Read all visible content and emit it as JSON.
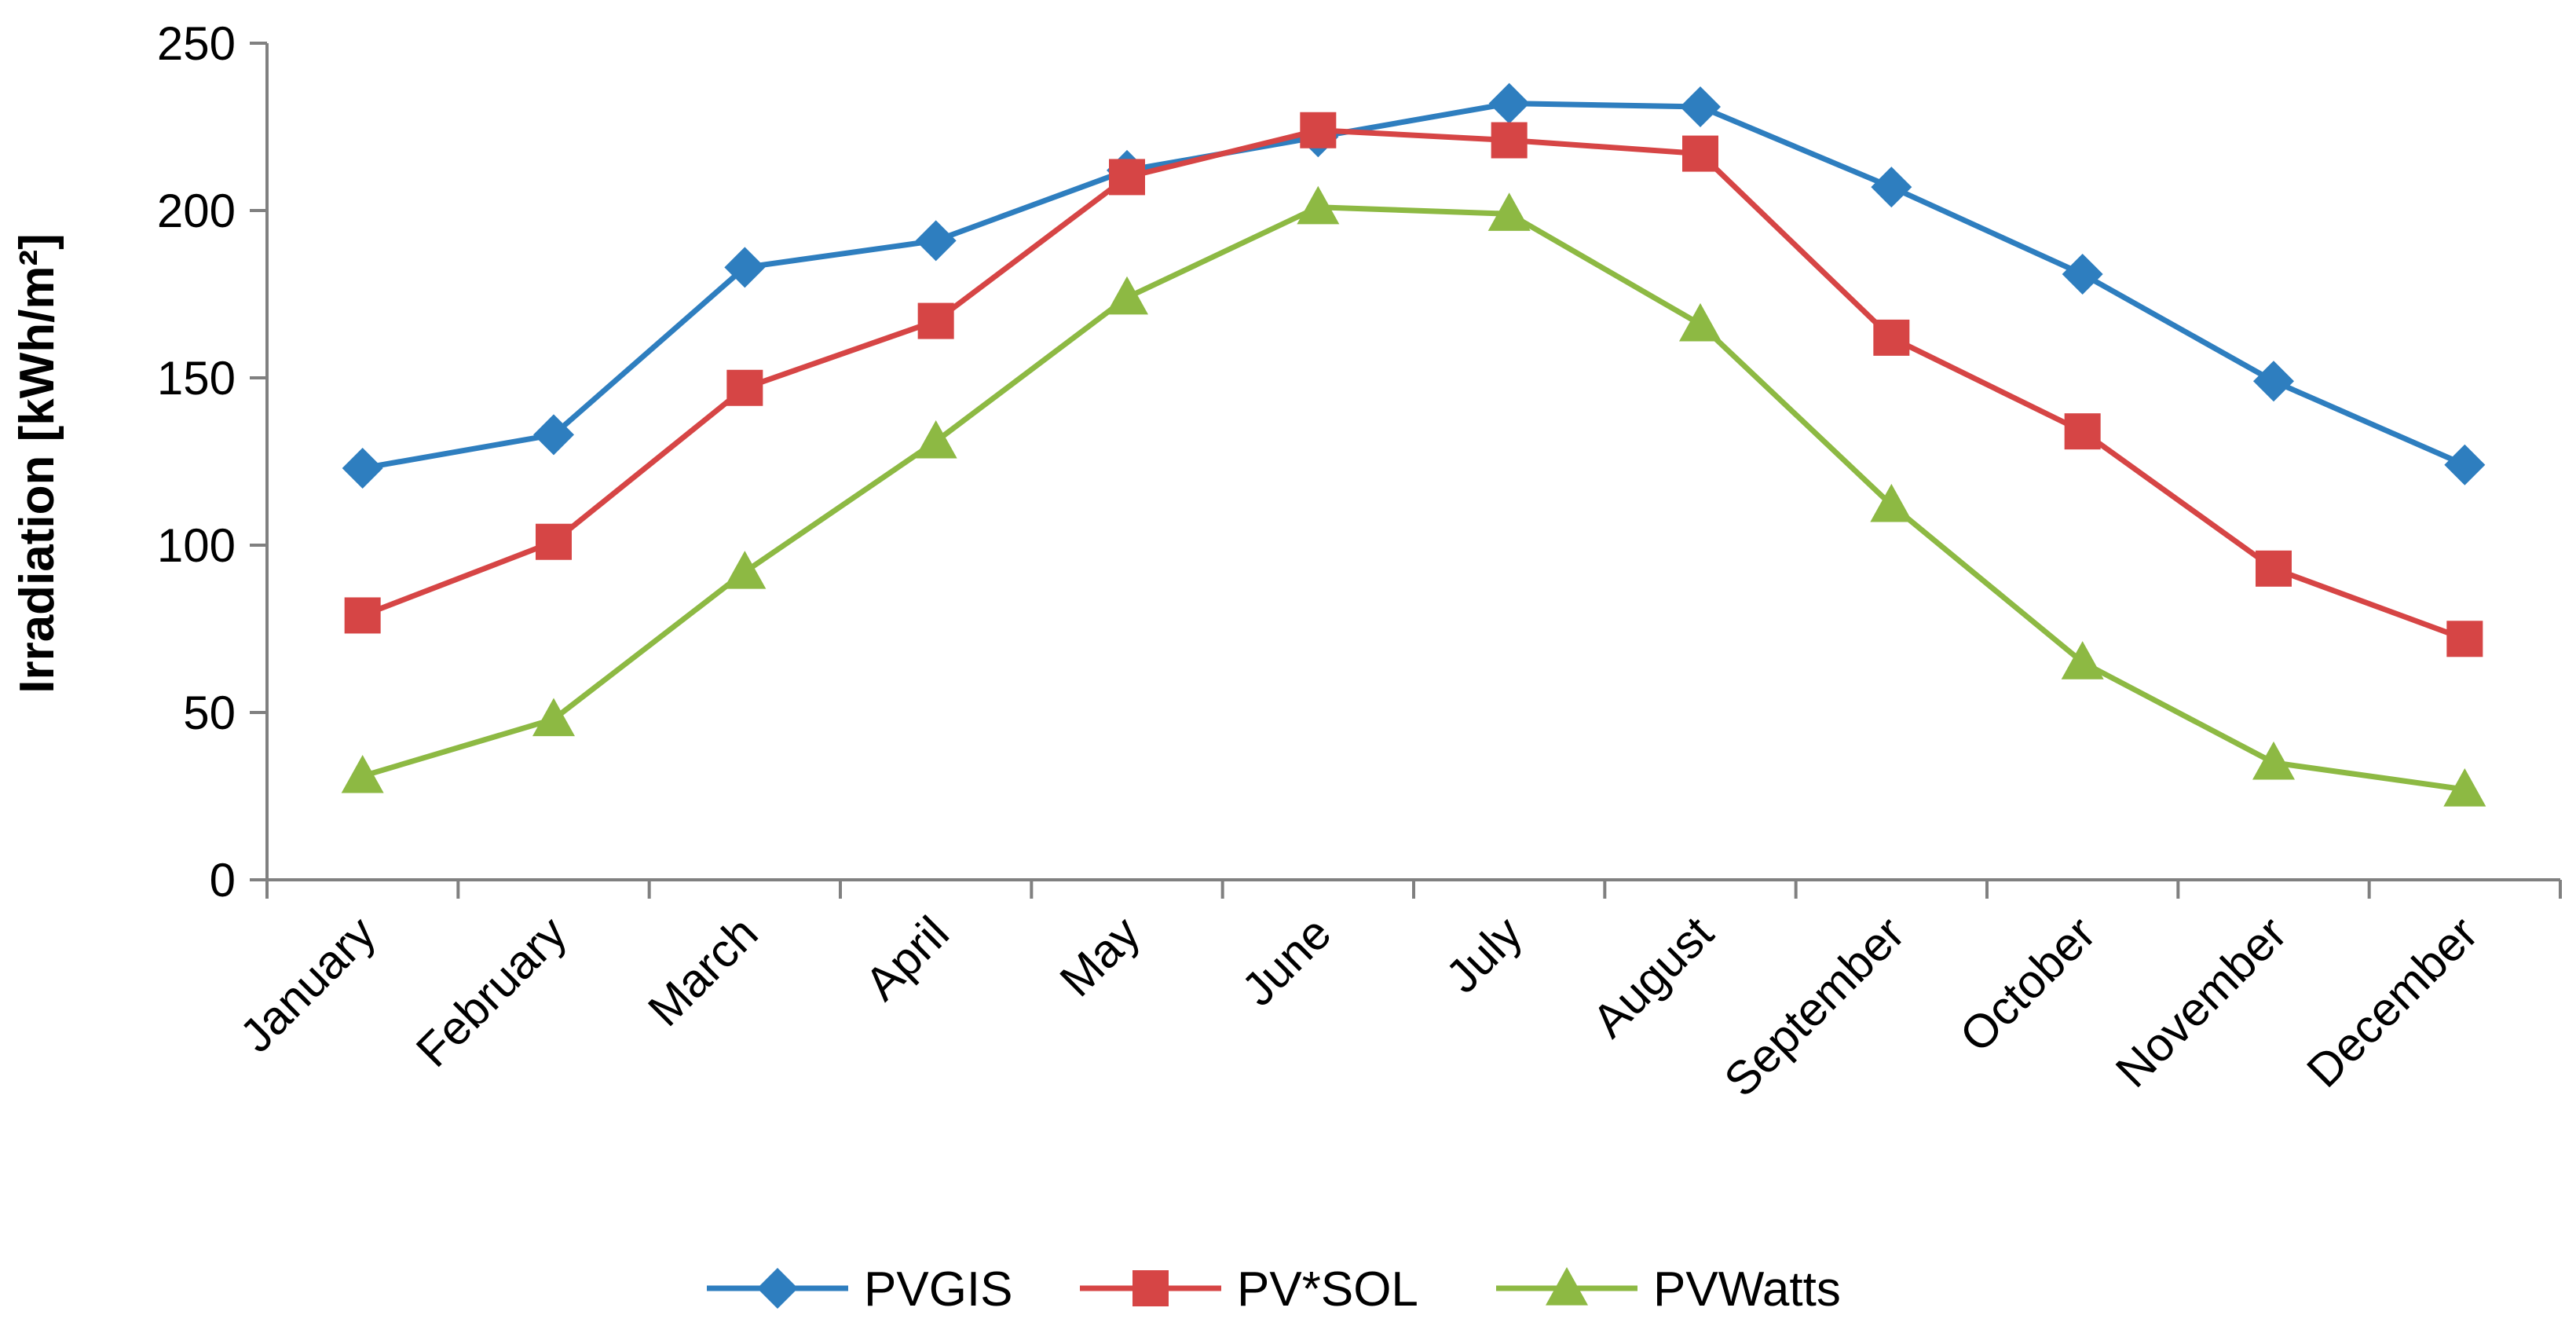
{
  "chart_data": {
    "type": "line",
    "title": "",
    "xlabel": "",
    "ylabel": "Irradiation [kWh/m²]",
    "ylim": [
      0,
      250
    ],
    "yticks": [
      "0",
      "50",
      "100",
      "150",
      "200",
      "250"
    ],
    "grid": false,
    "legend_position": "bottom",
    "categories": [
      "January",
      "February",
      "March",
      "April",
      "May",
      "June",
      "July",
      "August",
      "September",
      "October",
      "November",
      "December"
    ],
    "series": [
      {
        "name": "PVGIS",
        "color": "#2E7EBF",
        "marker": "diamond",
        "values": [
          123,
          133,
          183,
          191,
          212,
          222,
          232,
          231,
          207,
          181,
          149,
          124
        ]
      },
      {
        "name": "PV*SOL",
        "color": "#D64545",
        "marker": "square",
        "values": [
          79,
          101,
          147,
          167,
          210,
          224,
          221,
          217,
          162,
          134,
          93,
          72
        ]
      },
      {
        "name": "PVWatts",
        "color": "#8DB943",
        "marker": "triangle",
        "values": [
          31,
          48,
          92,
          131,
          174,
          201,
          199,
          166,
          112,
          65,
          35,
          27
        ]
      }
    ]
  }
}
